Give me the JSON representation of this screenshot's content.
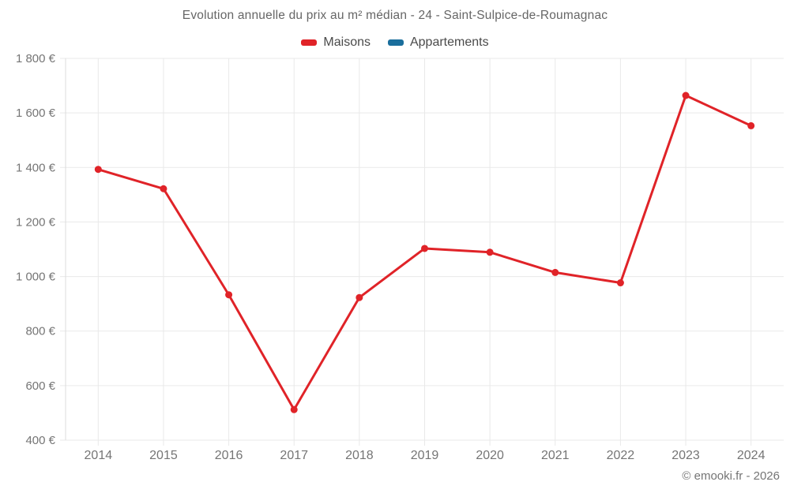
{
  "header": {
    "title": "Evolution annuelle du prix au m² médian - 24 - Saint-Sulpice-de-Roumagnac"
  },
  "legend": {
    "items": [
      {
        "label": "Maisons",
        "color": "#e02328"
      },
      {
        "label": "Appartements",
        "color": "#1a6e9c"
      }
    ]
  },
  "footer": {
    "copyright": "© emooki.fr - 2026"
  },
  "colors": {
    "grid": "#e9e9e9",
    "axis": "#dcdcdc",
    "tick_text": "#757575",
    "maisons": "#e02328",
    "appartements": "#1a6e9c"
  },
  "chart_data": {
    "type": "line",
    "title": "Evolution annuelle du prix au m² médian - 24 - Saint-Sulpice-de-Roumagnac",
    "categories": [
      "2014",
      "2015",
      "2016",
      "2017",
      "2018",
      "2019",
      "2020",
      "2021",
      "2022",
      "2023",
      "2024"
    ],
    "series": [
      {
        "name": "Maisons",
        "color": "#e02328",
        "values": [
          1393,
          1322,
          933,
          512,
          923,
          1103,
          1089,
          1015,
          977,
          1664,
          1553
        ]
      },
      {
        "name": "Appartements",
        "color": "#1a6e9c",
        "values": []
      }
    ],
    "xlabel": "",
    "ylabel": "",
    "ylim": [
      400,
      1800
    ],
    "ytick_step": 200,
    "ytick_labels": [
      "400 €",
      "600 €",
      "800 €",
      "1 000 €",
      "1 200 €",
      "1 400 €",
      "1 600 €",
      "1 800 €"
    ],
    "grid": true,
    "legend_position": "top",
    "marker_radius": 4.5,
    "line_width": 3
  }
}
